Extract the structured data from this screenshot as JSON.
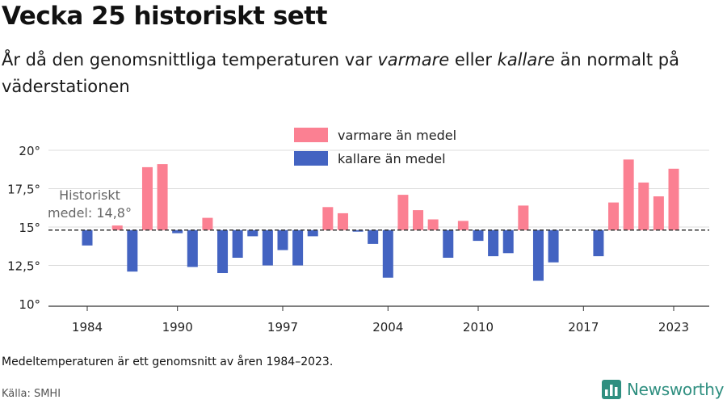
{
  "header": {
    "title": "Vecka 25 historiskt sett",
    "subtitle_parts": [
      "År då den genomsnittliga temperaturen var ",
      "varmare",
      " eller ",
      "kallare",
      " än normalt på väderstationen"
    ]
  },
  "chart_data": {
    "type": "bar",
    "baseline": 14.8,
    "baseline_label_lines": [
      "Historiskt",
      "medel: 14,8°"
    ],
    "ylim": [
      10,
      20
    ],
    "yticks": [
      10,
      12.5,
      15,
      17.5,
      20
    ],
    "ytick_labels": [
      "10°",
      "12,5°",
      "15°",
      "17,5°",
      "20°"
    ],
    "xlim": [
      1983,
      2025
    ],
    "xticks": [
      1984,
      1990,
      1997,
      2004,
      2010,
      2017,
      2023
    ],
    "xtick_labels": [
      "1984",
      "1990",
      "1997",
      "2004",
      "2010",
      "2017",
      "2023"
    ],
    "grid": true,
    "legend_position": "top-center",
    "series": [
      {
        "name": "varmare än medel",
        "color": "#fb8092"
      },
      {
        "name": "kallare än medel",
        "color": "#4363c1"
      }
    ],
    "x": [
      1984,
      1985,
      1986,
      1987,
      1988,
      1989,
      1990,
      1991,
      1992,
      1993,
      1994,
      1995,
      1996,
      1997,
      1998,
      1999,
      2000,
      2001,
      2002,
      2003,
      2004,
      2005,
      2006,
      2007,
      2008,
      2009,
      2010,
      2011,
      2012,
      2013,
      2014,
      2015,
      2016,
      2017,
      2018,
      2019,
      2020,
      2021,
      2022,
      2023
    ],
    "values": [
      13.8,
      null,
      15.1,
      12.1,
      18.9,
      19.1,
      14.6,
      12.4,
      15.6,
      12.0,
      13.0,
      14.4,
      12.5,
      13.5,
      12.5,
      14.4,
      16.3,
      15.9,
      14.7,
      13.9,
      11.7,
      17.1,
      16.1,
      15.5,
      13.0,
      15.4,
      14.1,
      13.1,
      13.3,
      16.4,
      11.5,
      12.7,
      null,
      null,
      13.1,
      16.6,
      19.4,
      17.9,
      17.0,
      18.8
    ]
  },
  "footer": {
    "note": "Medeltemperaturen är ett genomsnitt av åren 1984–2023.",
    "source": "Källa: SMHI",
    "brand": "Newsworthy",
    "brand_color": "#2f8f80"
  }
}
